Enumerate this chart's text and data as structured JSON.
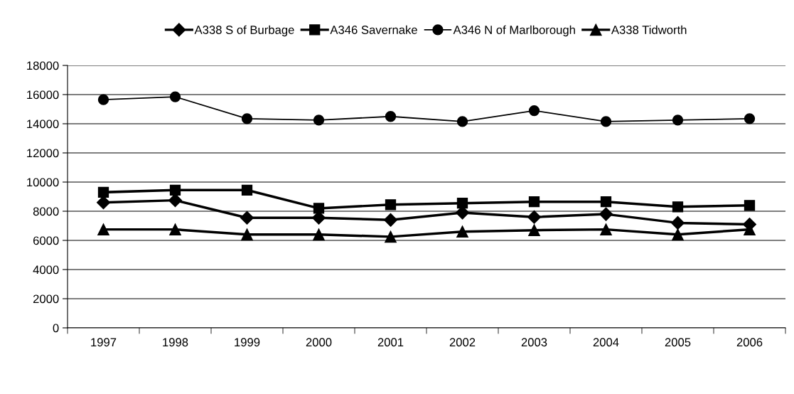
{
  "chart_data": {
    "type": "line",
    "categories": [
      "1997",
      "1998",
      "1999",
      "2000",
      "2001",
      "2002",
      "2003",
      "2004",
      "2005",
      "2006"
    ],
    "series": [
      {
        "name": "A338 S of Burbage",
        "color": "#000000",
        "marker": "diamond",
        "values": [
          8600,
          8750,
          7550,
          7550,
          7400,
          7900,
          7600,
          7800,
          7200,
          7100
        ]
      },
      {
        "name": "A346 Savernake",
        "color": "#000000",
        "marker": "square",
        "values": [
          9300,
          9450,
          9450,
          8200,
          8450,
          8550,
          8650,
          8650,
          8300,
          8400
        ]
      },
      {
        "name": "A346 N of Marlborough",
        "color": "#000000",
        "marker": "circle",
        "values": [
          15650,
          15850,
          14350,
          14250,
          14500,
          14150,
          14900,
          14150,
          14250,
          14350
        ]
      },
      {
        "name": "A338 Tidworth",
        "color": "#000000",
        "marker": "triangle",
        "values": [
          6750,
          6750,
          6400,
          6400,
          6250,
          6600,
          6700,
          6750,
          6400,
          6750
        ]
      }
    ],
    "ylim": [
      0,
      18000
    ],
    "yticks": [
      0,
      2000,
      4000,
      6000,
      8000,
      10000,
      12000,
      14000,
      16000,
      18000
    ],
    "grid": "y",
    "legend": "top",
    "line_style": "solid"
  }
}
